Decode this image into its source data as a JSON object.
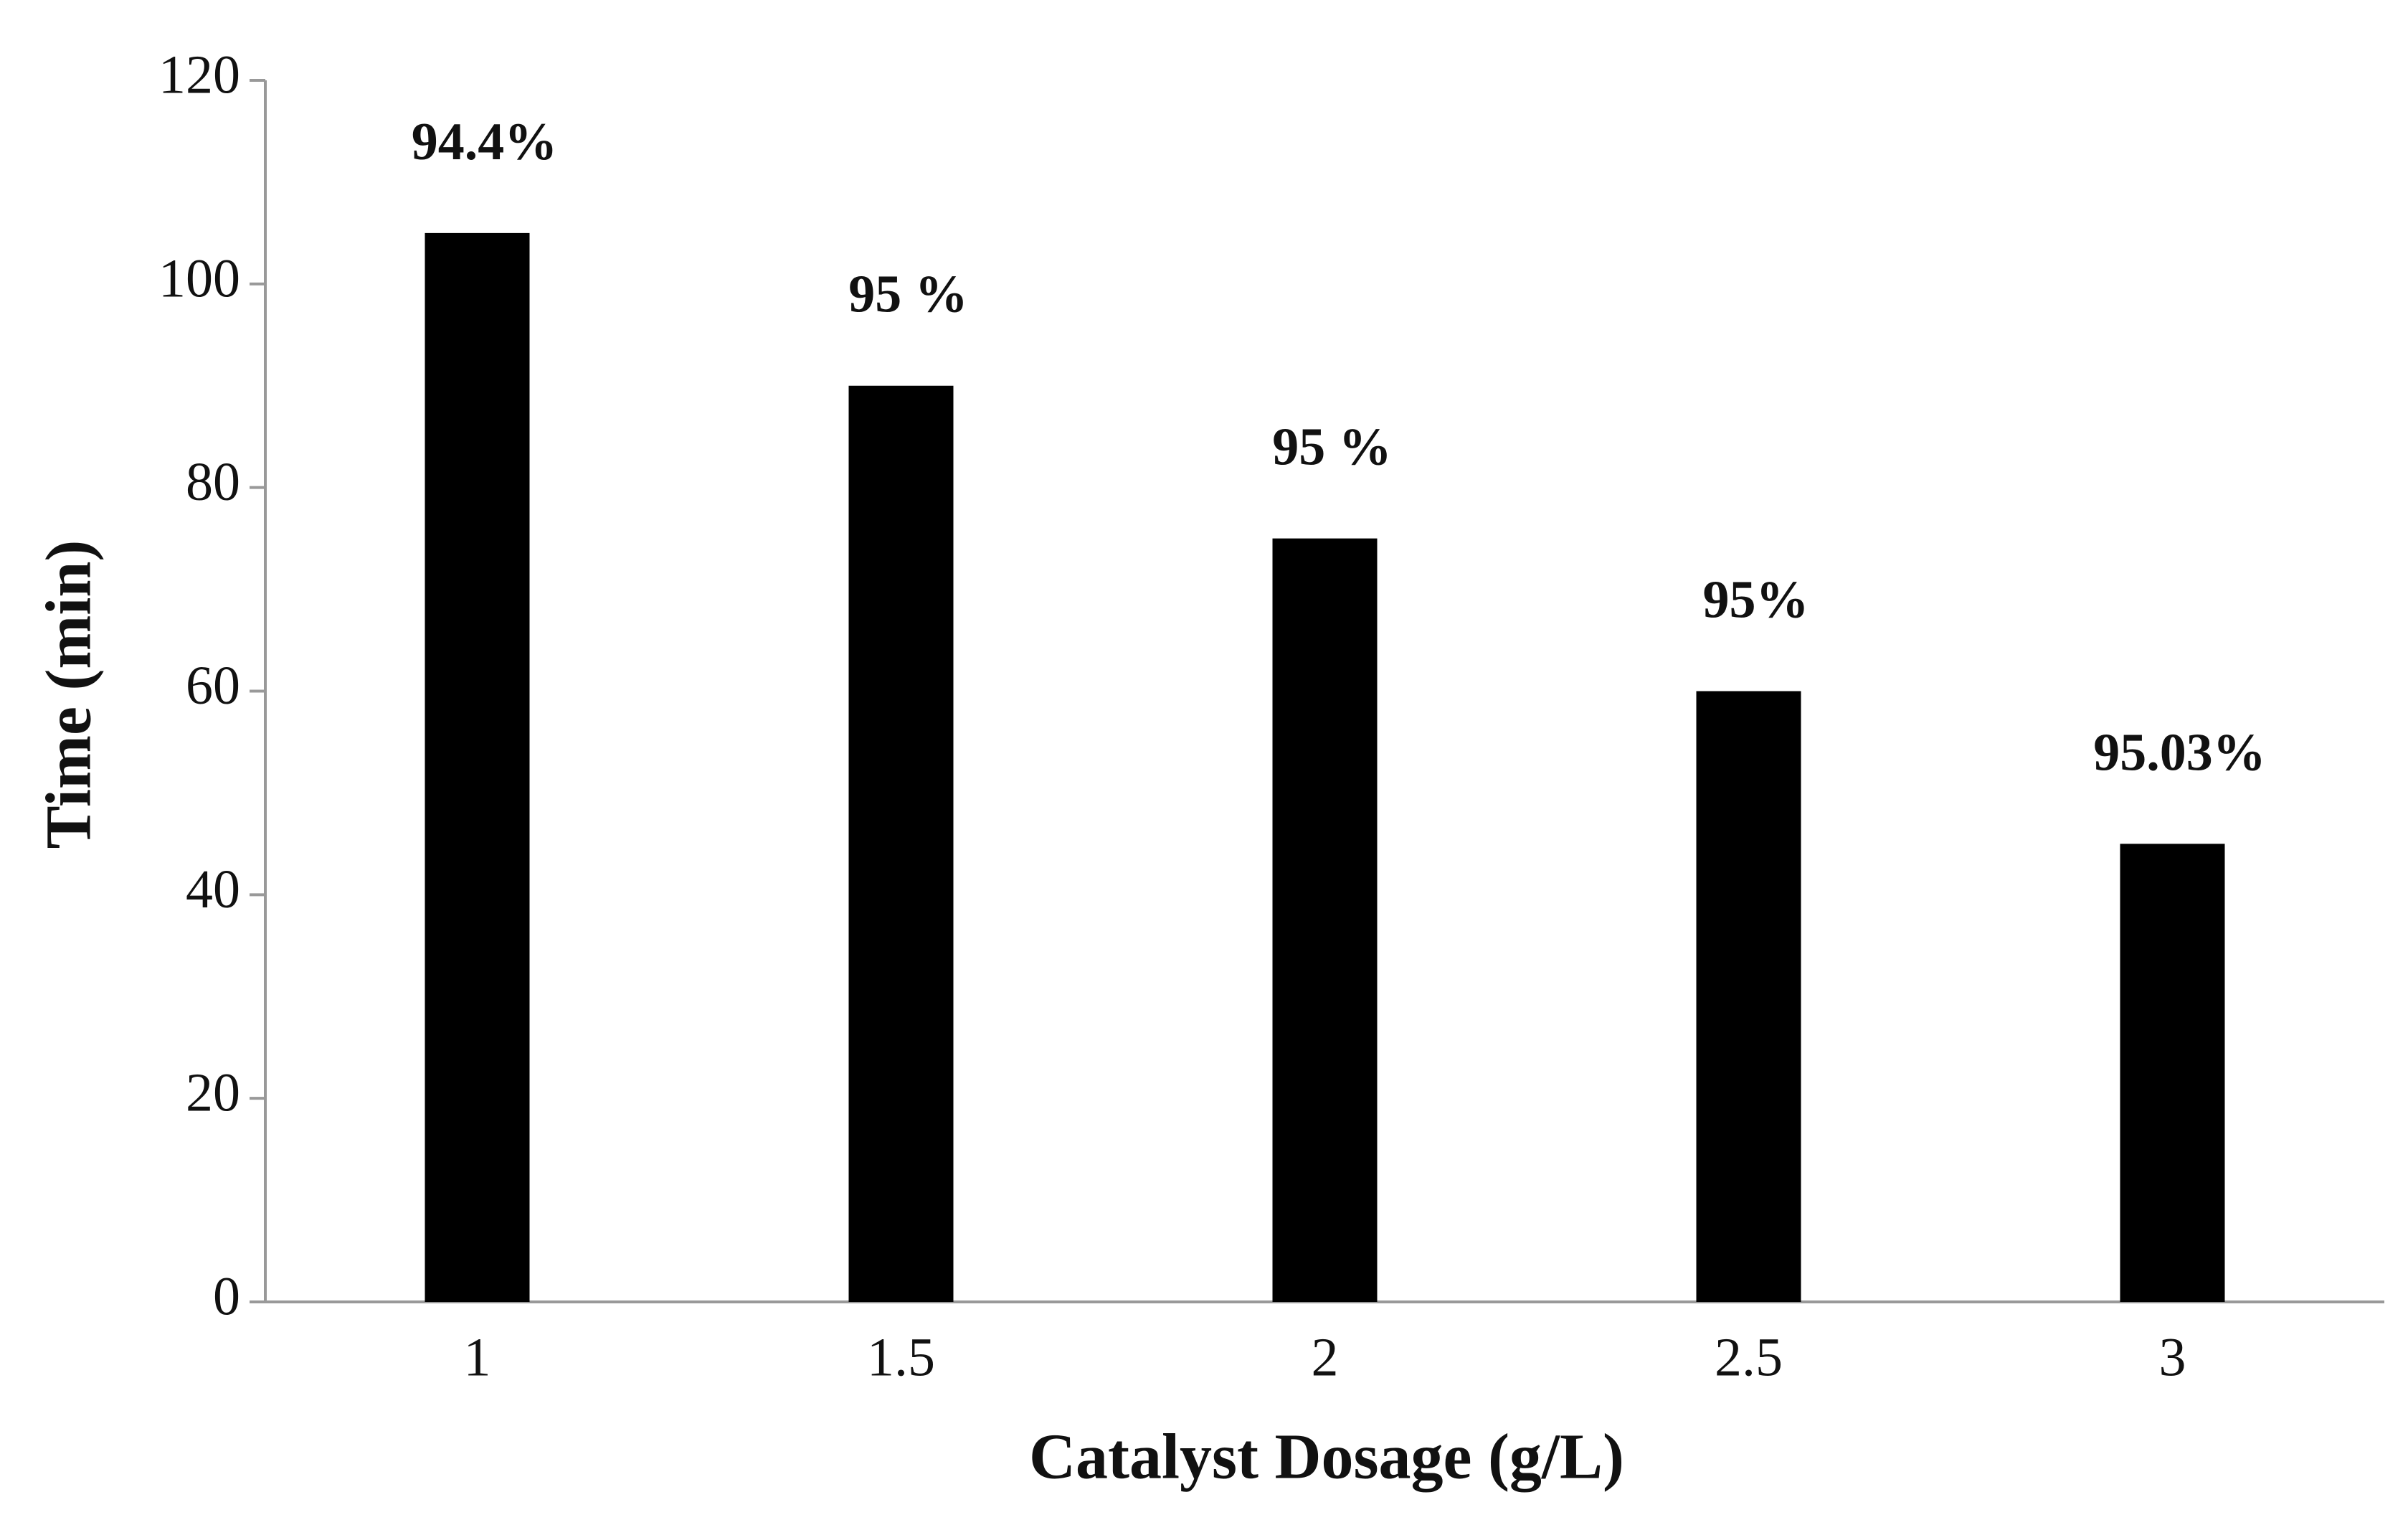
{
  "chart_data": {
    "type": "bar",
    "x_label": "Catalyst Dosage (g/L)",
    "y_label": "Time (min)",
    "categories": [
      "1",
      "1.5",
      "2",
      "2.5",
      "3"
    ],
    "values": [
      105,
      90,
      75,
      60,
      45
    ],
    "annotations": [
      "94.4%",
      "95 %",
      "95 %",
      "95%",
      "95.03%"
    ],
    "color": "#000000",
    "ylim": [
      0,
      120
    ],
    "yticks": [
      0,
      20,
      40,
      60,
      80,
      100,
      120
    ],
    "grid": false
  }
}
